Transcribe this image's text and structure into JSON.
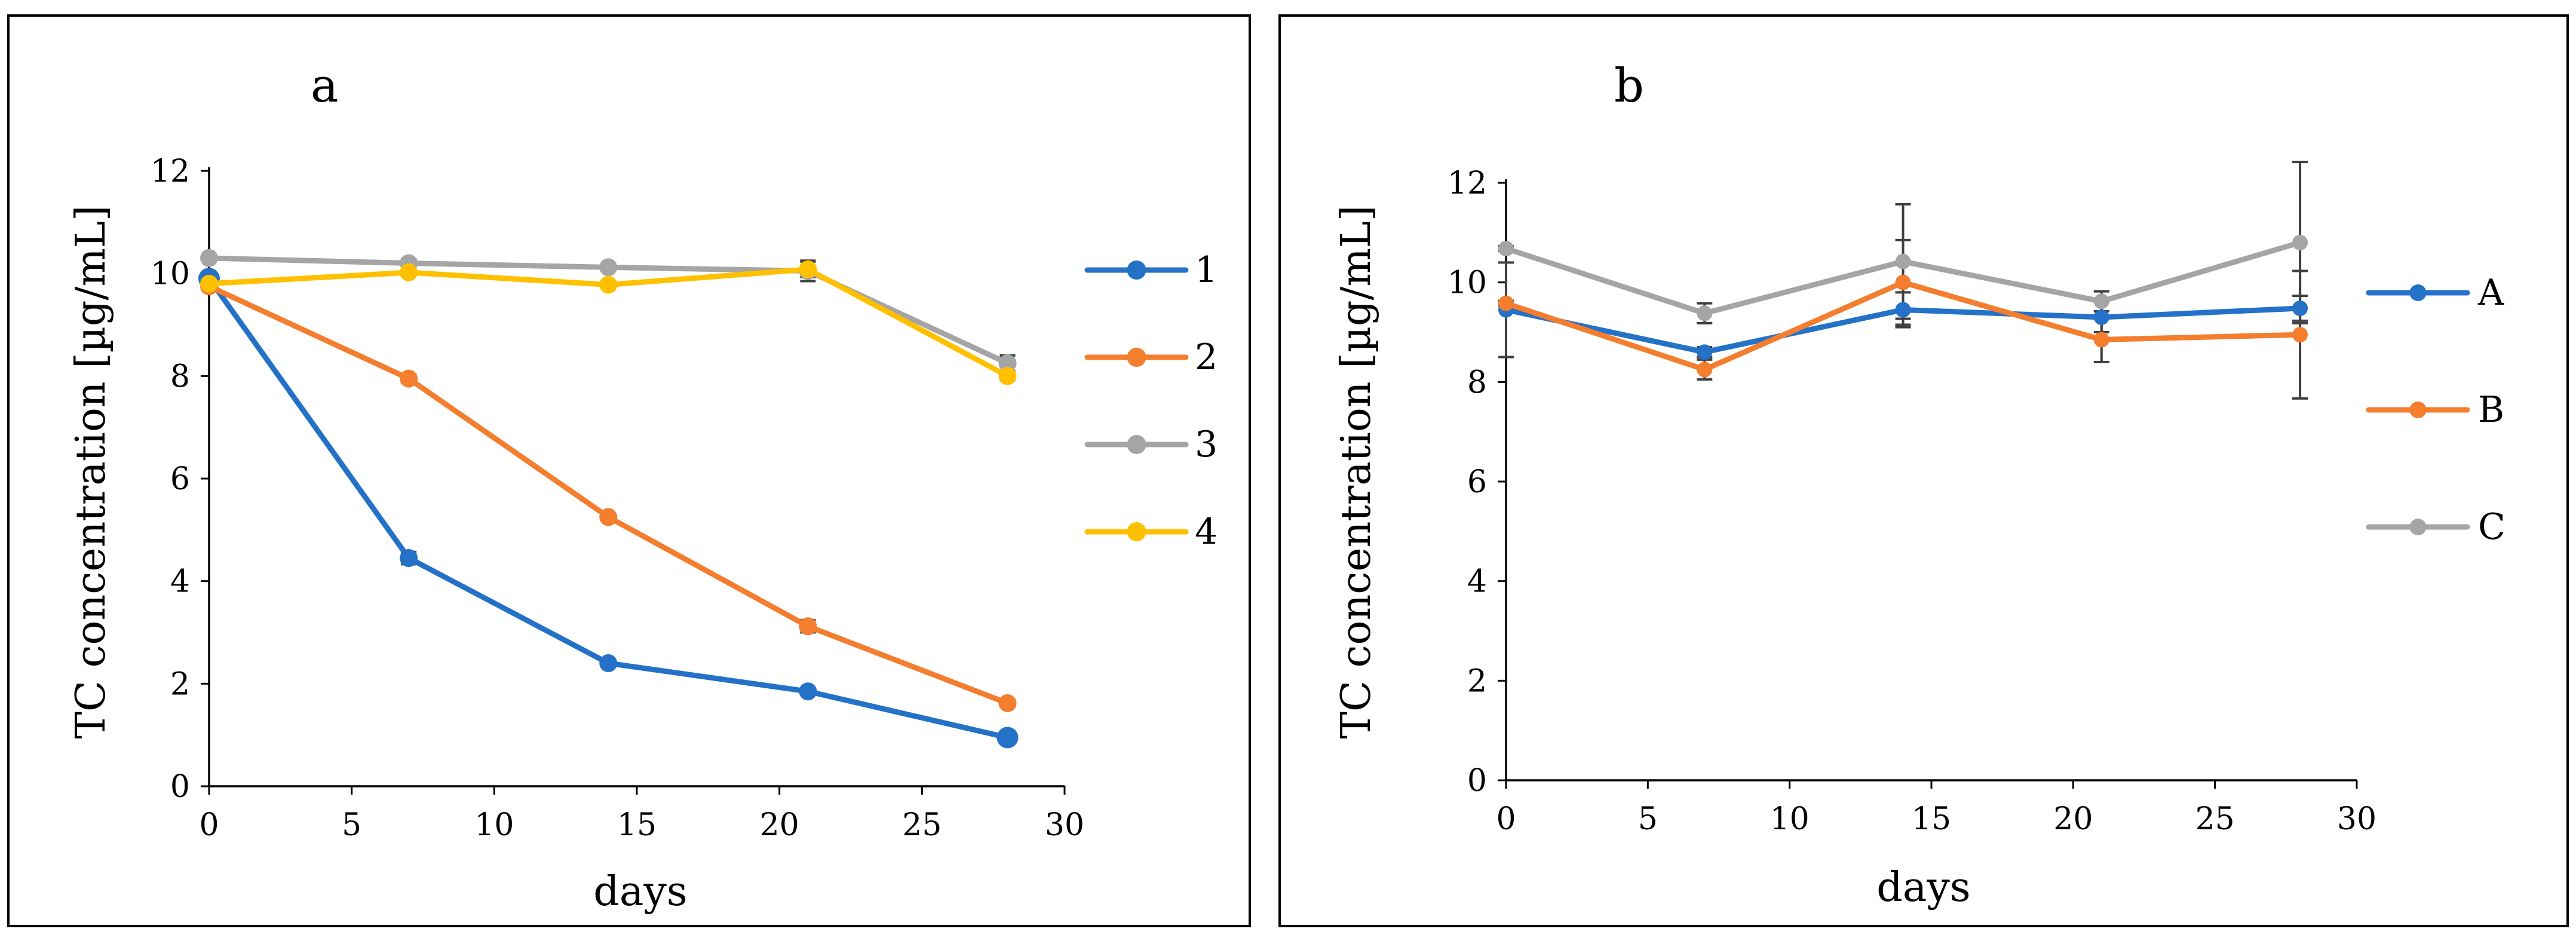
{
  "chart_data": [
    {
      "type": "line",
      "panel_label": "a",
      "xlabel": "days",
      "ylabel": "TC concentration [µg/mL]",
      "xlim": [
        0,
        30
      ],
      "ylim": [
        0,
        12
      ],
      "x_ticks": [
        0,
        5,
        10,
        15,
        20,
        25,
        30
      ],
      "y_ticks": [
        0,
        2,
        4,
        6,
        8,
        10,
        12
      ],
      "grid": false,
      "legend_position": "right",
      "x": [
        0,
        7,
        14,
        21,
        28
      ],
      "series": [
        {
          "name": "1",
          "color": "#2471C8",
          "values": [
            9.9,
            4.45,
            2.4,
            1.85,
            0.95
          ],
          "errors": [
            0.05,
            0.12,
            0.05,
            0.05,
            0.05
          ]
        },
        {
          "name": "2",
          "color": "#F47D2E",
          "values": [
            9.75,
            7.95,
            5.25,
            3.12,
            1.62
          ],
          "errors": [
            0.05,
            0.08,
            0.05,
            0.12,
            0.07
          ]
        },
        {
          "name": "3",
          "color": "#A5A5A5",
          "values": [
            10.3,
            10.2,
            10.12,
            10.05,
            8.25
          ],
          "errors": [
            0.03,
            0.08,
            0.03,
            0.2,
            0.15
          ]
        },
        {
          "name": "4",
          "color": "#FFC000",
          "values": [
            9.8,
            10.02,
            9.78,
            10.08,
            8.0
          ],
          "errors": [
            0.03,
            0.03,
            0.03,
            0.15,
            0.08
          ]
        }
      ]
    },
    {
      "type": "line",
      "panel_label": "b",
      "xlabel": "days",
      "ylabel": "TC concentration [µg/mL]",
      "xlim": [
        0,
        30
      ],
      "ylim": [
        0,
        12
      ],
      "x_ticks": [
        0,
        5,
        10,
        15,
        20,
        25,
        30
      ],
      "y_ticks": [
        0,
        2,
        4,
        6,
        8,
        10,
        12
      ],
      "grid": false,
      "legend_position": "right",
      "x": [
        0,
        7,
        14,
        21,
        28
      ],
      "series": [
        {
          "name": "A",
          "color": "#2471C8",
          "values": [
            9.45,
            8.6,
            9.45,
            9.3,
            9.48
          ],
          "errors": [
            0.95,
            0.1,
            0.35,
            0.3,
            0.25
          ]
        },
        {
          "name": "B",
          "color": "#F47D2E",
          "values": [
            9.58,
            8.25,
            10.0,
            8.85,
            8.95
          ],
          "errors": [
            0.05,
            0.2,
            0.85,
            0.45,
            1.28
          ]
        },
        {
          "name": "C",
          "color": "#A5A5A5",
          "values": [
            10.68,
            9.38,
            10.42,
            9.62,
            10.8
          ],
          "errors": [
            0.05,
            0.2,
            1.15,
            0.2,
            1.62
          ]
        }
      ]
    }
  ]
}
